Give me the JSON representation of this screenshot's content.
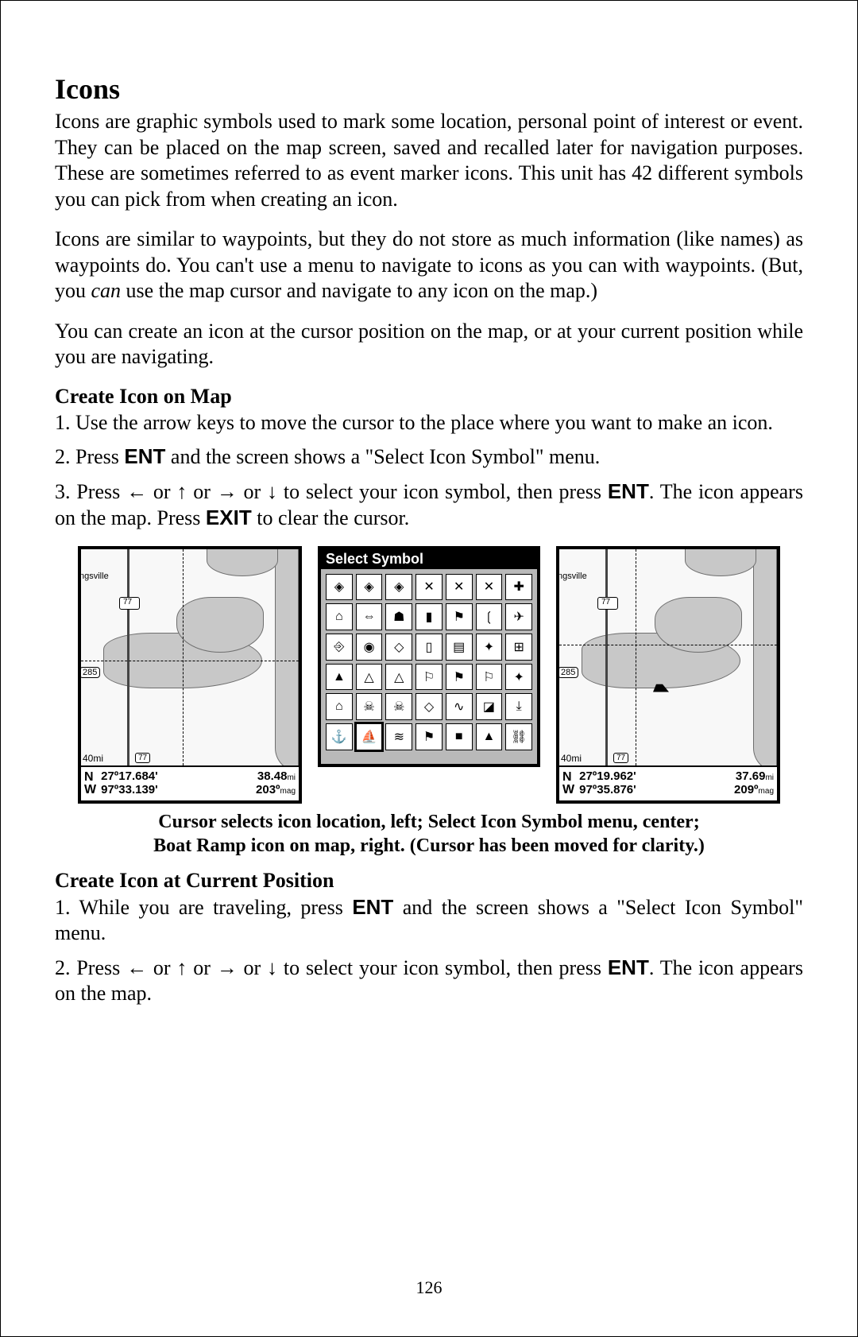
{
  "heading": "Icons",
  "para1": "Icons are graphic symbols used to mark some location, personal point of interest or event. They can be placed on the map screen, saved and recalled later for navigation purposes. These are sometimes referred to as event marker icons. This unit has 42 different symbols you can pick from when creating an icon.",
  "para2_a": "Icons are similar to waypoints, but they do not store as much information (like names) as waypoints do. You can't use a menu to navigate to icons as you can with waypoints. (But, you ",
  "para2_can": "can",
  "para2_b": " use the map cursor and navigate to any icon on the map.)",
  "para3": "You can create an icon at the cursor position on the map, or at your current position while you are navigating.",
  "sub1": "Create Icon on Map",
  "step1_1": "1. Use the arrow keys to move the cursor to the place where you want to make an icon.",
  "step1_2a": "2. Press ",
  "ENT": "ENT",
  "step1_2b": " and the screen shows a \"Select Icon Symbol\" menu.",
  "step1_3a": "3. Press ",
  "or": " or ",
  "step1_3b": " to select your icon symbol, then press ",
  "step1_3c": ". The icon appears on the map. Press ",
  "EXIT": "EXIT",
  "step1_3d": " to clear the cursor.",
  "menu_title": "Select Symbol",
  "icon_glyphs": [
    "◈",
    "◈",
    "◈",
    "✕",
    "✕",
    "✕",
    "✚",
    "⌂",
    "⇔",
    "☗",
    "▮",
    "⚑",
    "❲",
    "✈",
    "⎆",
    "◉",
    "◇",
    "▯",
    "▤",
    "✦",
    "⊞",
    "▲",
    "△",
    "△",
    "⚐",
    "⚑",
    "⚐",
    "✦",
    "⌂",
    "☠",
    "☠",
    "◇",
    "∿",
    "◪",
    "⤓",
    "⚓",
    "⛵",
    "≋",
    "⚑",
    "■",
    "▲",
    "⛓"
  ],
  "selected_icon_index": 36,
  "map_left": {
    "city": "ngsville",
    "hwy1": "77",
    "hwy2": "77",
    "hwy285": "285",
    "scale": "40mi",
    "lat": "27º17.684'",
    "lon": "97º33.139'",
    "dist": "38.48",
    "dist_unit": "mi",
    "brg": "203º",
    "brg_unit": "mag"
  },
  "map_right": {
    "city": "ngsville",
    "hwy1": "77",
    "hwy2": "77",
    "hwy285": "285",
    "scale": "40mi",
    "lat": "27º19.962'",
    "lon": "97º35.876'",
    "dist": "37.69",
    "dist_unit": "mi",
    "brg": "209º",
    "brg_unit": "mag"
  },
  "caption_l1": "Cursor selects icon location, left; Select Icon Symbol menu, center;",
  "caption_l2": "Boat Ramp icon on map, right. (Cursor has been moved for clarity.)",
  "sub2": "Create Icon at Current Position",
  "step2_1a": "1. While you are traveling, press ",
  "step2_1b": " and the screen shows a \"Select Icon Symbol\" menu.",
  "step2_2a": "2. Press ",
  "step2_2b": " to select your icon symbol, then press ",
  "step2_2c": ". The icon appears on the map.",
  "page_number": "126",
  "arrows": {
    "left": "←",
    "up": "↑",
    "right": "→",
    "down": "↓"
  },
  "colors": {
    "text": "#000000",
    "page_bg": "#ffffff",
    "panel_gray": "#b9b9b9",
    "land": "#c8c8c8"
  }
}
